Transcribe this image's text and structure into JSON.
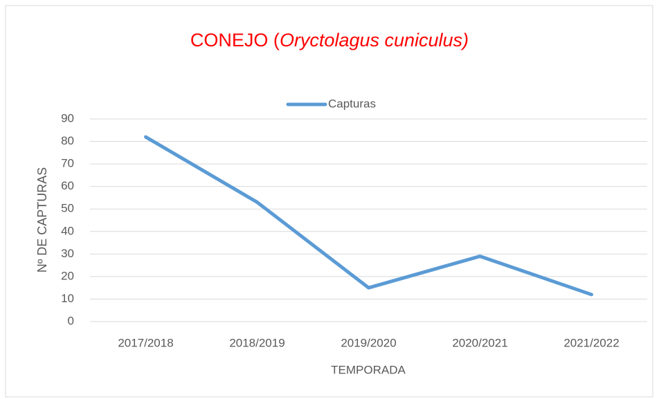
{
  "chart_data": {
    "type": "line",
    "title": [
      "CONEJO (",
      "Oryctolagus cuniculus)"
    ],
    "x_label": "TEMPORADA",
    "y_label": "Nº DE CAPTURAS",
    "categories": [
      "2017/2018",
      "2018/2019",
      "2019/2020",
      "2020/2021",
      "2021/2022"
    ],
    "series": [
      {
        "name": "Capturas",
        "color": "#5b9bd5",
        "values": [
          82,
          53,
          15,
          29,
          12
        ]
      }
    ],
    "ylim": [
      0,
      90
    ],
    "yticks": [
      0,
      10,
      20,
      30,
      40,
      50,
      60,
      70,
      80,
      90
    ],
    "grid": true,
    "legend": "top"
  }
}
